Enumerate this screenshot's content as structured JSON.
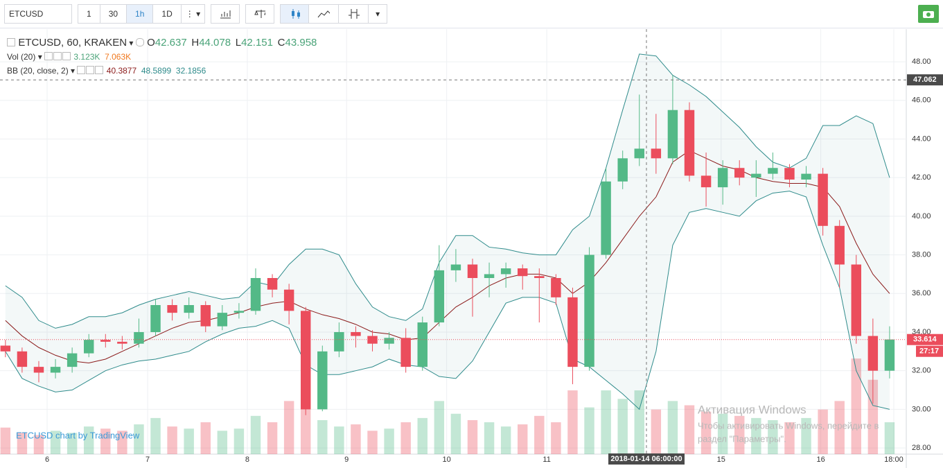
{
  "toolbar": {
    "symbol": "ETCUSD",
    "intervals": [
      "1",
      "30",
      "1h",
      "1D"
    ]
  },
  "legend": {
    "title": "ETCUSD, 60, KRAKEN",
    "ohlc": [
      {
        "key": "O",
        "value": "42.637"
      },
      {
        "key": "H",
        "value": "44.078"
      },
      {
        "key": "L",
        "value": "42.151"
      },
      {
        "key": "C",
        "value": "43.958"
      }
    ],
    "vol": {
      "name": "Vol (20)",
      "values": [
        "3.123K",
        "7.063K"
      ]
    },
    "bb": {
      "name": "BB (20, close, 2)",
      "values": [
        "40.3877",
        "48.5899",
        "32.1856"
      ]
    }
  },
  "chart_data": {
    "type": "candlestick",
    "x": [
      0,
      4,
      8,
      12,
      16,
      20,
      24,
      28,
      32,
      36,
      40,
      44,
      48,
      52,
      56,
      60,
      64,
      68,
      72,
      76,
      80,
      84,
      88,
      92,
      96,
      100,
      104,
      108,
      112,
      116,
      120,
      124,
      128,
      132,
      136,
      140,
      144,
      148,
      152,
      156,
      160,
      164,
      168,
      172,
      176,
      180,
      184,
      188,
      192,
      196,
      200,
      204,
      208,
      212
    ],
    "open": [
      33.3,
      33.0,
      32.2,
      31.9,
      32.2,
      32.9,
      33.6,
      33.5,
      33.4,
      34.0,
      35.4,
      35.0,
      35.4,
      34.3,
      35.0,
      35.1,
      36.8,
      36.2,
      35.1,
      30.0,
      33.0,
      34.0,
      33.8,
      33.4,
      33.7,
      32.2,
      34.5,
      37.2,
      37.5,
      36.8,
      37.0,
      37.3,
      36.9,
      36.8,
      35.8,
      32.2,
      38.0,
      41.8,
      43.0,
      43.5,
      43.0,
      45.5,
      42.1,
      41.5,
      42.5,
      42.0,
      42.2,
      42.5,
      41.9,
      42.2,
      39.5,
      37.5,
      33.8,
      32.0
    ],
    "high": [
      33.6,
      33.2,
      32.5,
      32.6,
      33.2,
      33.9,
      33.9,
      33.8,
      34.7,
      35.7,
      35.7,
      35.8,
      35.6,
      35.4,
      35.5,
      37.3,
      37.0,
      36.5,
      35.3,
      33.3,
      34.5,
      34.3,
      34.1,
      34.0,
      34.2,
      34.8,
      38.5,
      38.3,
      37.8,
      37.6,
      37.6,
      37.5,
      37.3,
      37.0,
      36.3,
      38.4,
      42.5,
      43.4,
      46.3,
      45.3,
      47.3,
      45.9,
      43.3,
      42.9,
      42.9,
      42.9,
      43.3,
      42.7,
      42.6,
      42.5,
      39.8,
      38.0,
      34.7,
      34.3
    ],
    "low": [
      32.7,
      31.9,
      31.4,
      31.6,
      31.9,
      32.7,
      33.2,
      33.1,
      33.2,
      33.8,
      34.6,
      34.7,
      34.0,
      34.1,
      34.7,
      34.9,
      35.8,
      34.4,
      29.7,
      29.9,
      32.7,
      33.2,
      33.0,
      33.1,
      31.9,
      32.0,
      34.3,
      36.6,
      34.8,
      35.8,
      36.3,
      36.2,
      34.5,
      35.4,
      31.3,
      32.0,
      37.8,
      41.4,
      42.6,
      42.2,
      42.7,
      41.8,
      40.5,
      40.6,
      41.6,
      41.0,
      41.9,
      41.5,
      41.5,
      39.0,
      36.3,
      33.4,
      30.3,
      31.6
    ],
    "close": [
      33.0,
      32.2,
      31.9,
      32.2,
      32.9,
      33.6,
      33.5,
      33.4,
      34.0,
      35.4,
      35.0,
      35.4,
      34.3,
      35.0,
      35.1,
      36.8,
      36.2,
      35.1,
      30.0,
      33.0,
      34.0,
      33.8,
      33.4,
      33.7,
      32.2,
      34.5,
      37.2,
      37.5,
      36.8,
      37.0,
      37.3,
      36.9,
      36.8,
      35.8,
      32.2,
      38.0,
      41.8,
      43.0,
      43.5,
      43.0,
      45.5,
      42.1,
      41.5,
      42.5,
      42.0,
      42.2,
      42.5,
      41.9,
      42.2,
      39.5,
      37.5,
      33.8,
      32.0,
      33.614
    ],
    "volume": [
      2.5,
      2.0,
      1.8,
      2.2,
      2.0,
      2.6,
      2.4,
      2.2,
      2.8,
      3.4,
      2.6,
      2.4,
      3.0,
      2.2,
      2.4,
      3.6,
      3.0,
      5.0,
      8.0,
      3.2,
      2.6,
      2.8,
      2.2,
      2.4,
      3.0,
      3.4,
      5.0,
      3.8,
      3.2,
      3.0,
      2.6,
      2.8,
      3.6,
      3.0,
      6.0,
      4.4,
      6.0,
      5.2,
      6.0,
      4.2,
      5.0,
      4.6,
      4.0,
      3.8,
      3.6,
      3.4,
      3.2,
      3.0,
      3.4,
      4.2,
      5.0,
      9.0,
      7.0,
      3.0
    ],
    "bb_upper": [
      36.4,
      35.8,
      34.6,
      34.2,
      34.4,
      34.8,
      34.8,
      35.0,
      35.4,
      35.7,
      35.9,
      36.1,
      35.9,
      35.7,
      35.8,
      36.6,
      36.4,
      37.5,
      38.3,
      38.3,
      38.0,
      36.5,
      35.3,
      34.8,
      34.6,
      35.2,
      37.6,
      39.0,
      39.0,
      38.4,
      38.3,
      38.1,
      38.0,
      38.0,
      39.3,
      40.0,
      42.5,
      45.5,
      48.4,
      48.3,
      47.3,
      46.8,
      46.2,
      45.4,
      44.6,
      43.6,
      42.8,
      42.5,
      43.0,
      44.7,
      44.7,
      45.2,
      44.8,
      42.0
    ],
    "bb_basis": [
      34.6,
      33.8,
      33.2,
      32.8,
      32.5,
      32.4,
      32.6,
      33.0,
      33.4,
      33.8,
      34.2,
      34.5,
      34.6,
      34.8,
      35.0,
      35.3,
      35.5,
      35.6,
      35.2,
      34.9,
      34.7,
      34.4,
      34.0,
      33.9,
      33.6,
      33.7,
      34.5,
      35.3,
      35.8,
      36.4,
      36.8,
      37.0,
      37.0,
      36.8,
      36.0,
      36.6,
      37.6,
      38.8,
      40.0,
      41.0,
      42.8,
      43.4,
      43.0,
      42.6,
      42.4,
      42.0,
      41.8,
      41.7,
      41.7,
      41.5,
      40.5,
      38.6,
      37.0,
      36.0
    ],
    "bb_lower": [
      33.0,
      31.6,
      31.2,
      30.9,
      31.0,
      31.5,
      32.0,
      32.3,
      32.5,
      32.6,
      32.8,
      33.0,
      33.5,
      33.9,
      34.2,
      34.3,
      34.6,
      34.2,
      32.3,
      31.8,
      31.8,
      32.0,
      32.2,
      32.6,
      32.3,
      32.2,
      31.7,
      31.6,
      32.5,
      34.0,
      35.5,
      35.8,
      35.8,
      35.5,
      32.6,
      32.2,
      31.5,
      30.8,
      30.0,
      33.0,
      38.5,
      40.2,
      40.4,
      40.2,
      40.0,
      40.8,
      41.2,
      41.3,
      41.0,
      38.5,
      36.3,
      32.0,
      30.2,
      30.0
    ],
    "xlim": [
      -1.3,
      216
    ],
    "ylim": [
      27.68,
      49.69
    ],
    "vlim": [
      0,
      40
    ],
    "yticks": [
      {
        "value": 28,
        "label": "28.00"
      },
      {
        "value": 30,
        "label": "30.00"
      },
      {
        "value": 32,
        "label": "32.00"
      },
      {
        "value": 34,
        "label": "34.00"
      },
      {
        "value": 36,
        "label": "36.00"
      },
      {
        "value": 38,
        "label": "38.00"
      },
      {
        "value": 40,
        "label": "40.00"
      },
      {
        "value": 42,
        "label": "42.00"
      },
      {
        "value": 44,
        "label": "44.00"
      },
      {
        "value": 46,
        "label": "46.00"
      },
      {
        "value": 48,
        "label": "48.00"
      }
    ],
    "xticks": [
      {
        "value": 10,
        "label": "6"
      },
      {
        "value": 34.1,
        "label": "7"
      },
      {
        "value": 58,
        "label": "8"
      },
      {
        "value": 81.8,
        "label": "9"
      },
      {
        "value": 105.8,
        "label": "10"
      },
      {
        "value": 129.8,
        "label": "11"
      },
      {
        "value": 171.6,
        "label": "15"
      },
      {
        "value": 195.5,
        "label": "16"
      },
      {
        "value": 213,
        "label": "18:00"
      }
    ],
    "crosshair": {
      "x": {
        "value": 153.7,
        "label": "2018-01-14 06:00:00"
      },
      "y": 47.062
    },
    "last_price": 33.614,
    "countdown": "27:17",
    "watermark": "ETCUSD chart by TradingView",
    "colors": {
      "up": "#53b987",
      "down": "#eb4d5c",
      "band": "#2e8b8b",
      "basis": "#8b1a1a"
    }
  },
  "os_notice": {
    "title": "Активация Windows",
    "lines": [
      "Чтобы активировать Windows, перейдите в",
      "раздел \"Параметры\"."
    ]
  }
}
